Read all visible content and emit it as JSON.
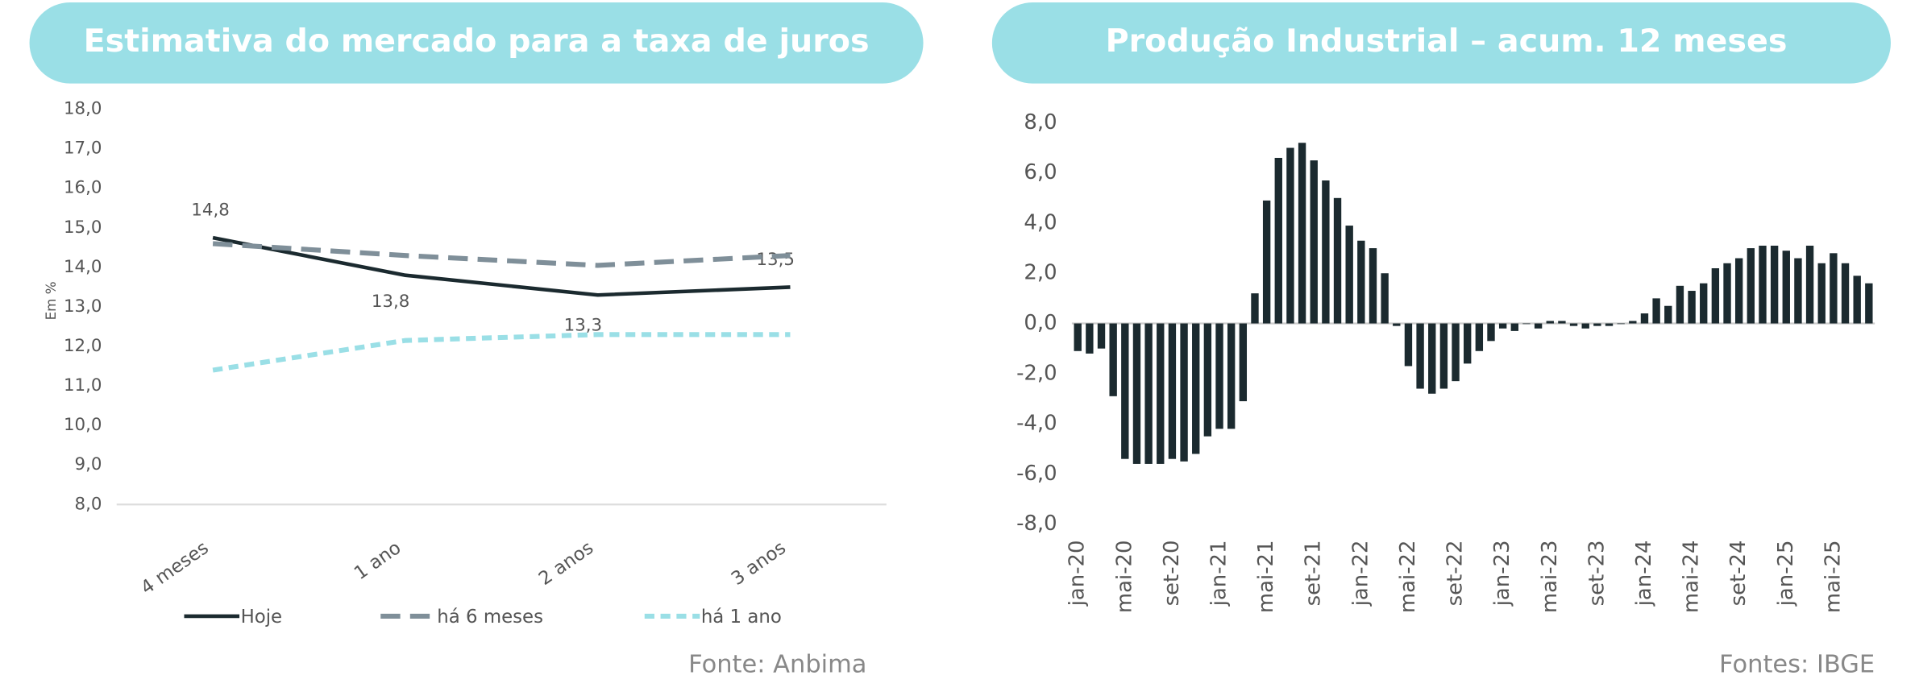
{
  "chart_data": [
    {
      "type": "line",
      "title": "Estimativa do mercado para a taxa de juros",
      "y_label": "Em %",
      "source": "Fonte: Anbima",
      "categories": [
        "4 meses",
        "1 ano",
        "2 anos",
        "3 anos"
      ],
      "series": [
        {
          "name": "Hoje",
          "color": "#1b2a2f",
          "values": [
            14.75,
            13.8,
            13.3,
            13.5
          ],
          "value_labels": [
            "14,8",
            "13,8",
            "13,3",
            "13,5"
          ]
        },
        {
          "name": "há 6 meses",
          "color": "#7f8f99",
          "values": [
            14.6,
            14.3,
            14.05,
            14.3
          ]
        },
        {
          "name": "há 1 ano",
          "color": "#9adfe6",
          "values": [
            11.4,
            12.15,
            12.3,
            12.3
          ]
        }
      ],
      "ylim": [
        8,
        18
      ],
      "yticks": [
        {
          "value": 8,
          "label": "8,0"
        },
        {
          "value": 9,
          "label": "9,0"
        },
        {
          "value": 10,
          "label": "10,0"
        },
        {
          "value": 11,
          "label": "11,0"
        },
        {
          "value": 12,
          "label": "12,0"
        },
        {
          "value": 13,
          "label": "13,0"
        },
        {
          "value": 14,
          "label": "14,0"
        },
        {
          "value": 15,
          "label": "15,0"
        },
        {
          "value": 16,
          "label": "16,0"
        },
        {
          "value": 17,
          "label": "17,0"
        },
        {
          "value": 18,
          "label": "18,0"
        }
      ],
      "legend": "bottom"
    },
    {
      "type": "bar",
      "title": "Produção Industrial – acum. 12 meses",
      "source": "Fontes: IBGE",
      "color": "#1b2a2f",
      "categories": [
        "jan-20",
        null,
        null,
        null,
        "mai-20",
        null,
        null,
        null,
        "set-20",
        null,
        null,
        null,
        "jan-21",
        null,
        null,
        null,
        "mai-21",
        null,
        null,
        null,
        "set-21",
        null,
        null,
        null,
        "jan-22",
        null,
        null,
        null,
        "mai-22",
        null,
        null,
        null,
        "set-22",
        null,
        null,
        null,
        "jan-23",
        null,
        null,
        null,
        "mai-23",
        null,
        null,
        null,
        "set-23",
        null,
        null,
        null,
        "jan-24",
        null,
        null,
        null,
        "mai-24",
        null,
        null,
        null,
        "set-24",
        null,
        null,
        null,
        "jan-25",
        null,
        null,
        null,
        "mai-25",
        null,
        null,
        null
      ],
      "values": [
        -1.1,
        -1.2,
        -1.0,
        -2.9,
        -5.4,
        -5.6,
        -5.6,
        -5.6,
        -5.4,
        -5.5,
        -5.2,
        -4.5,
        -4.2,
        -4.2,
        -3.1,
        1.2,
        4.9,
        6.6,
        7.0,
        7.2,
        6.5,
        5.7,
        5.0,
        3.9,
        3.3,
        3.0,
        2.0,
        -0.1,
        -1.7,
        -2.6,
        -2.8,
        -2.6,
        -2.3,
        -1.6,
        -1.1,
        -0.7,
        -0.2,
        -0.3,
        0.0,
        -0.2,
        0.1,
        0.1,
        -0.1,
        -0.2,
        -0.1,
        -0.1,
        0.0,
        0.1,
        0.4,
        1.0,
        0.7,
        1.5,
        1.3,
        1.6,
        2.2,
        2.4,
        2.6,
        3.0,
        3.1,
        3.1,
        2.9,
        2.6,
        3.1,
        2.4,
        2.8,
        2.4,
        1.9,
        1.6
      ],
      "ylim": [
        -8,
        8
      ],
      "yticks": [
        {
          "value": -8,
          "label": "-8,0"
        },
        {
          "value": -6,
          "label": "-6,0"
        },
        {
          "value": -4,
          "label": "-4,0"
        },
        {
          "value": -2,
          "label": "-2,0"
        },
        {
          "value": 0,
          "label": "0,0"
        },
        {
          "value": 2,
          "label": "2,0"
        },
        {
          "value": 4,
          "label": "4,0"
        },
        {
          "value": 6,
          "label": "6,0"
        },
        {
          "value": 8,
          "label": "8,0"
        }
      ]
    }
  ]
}
